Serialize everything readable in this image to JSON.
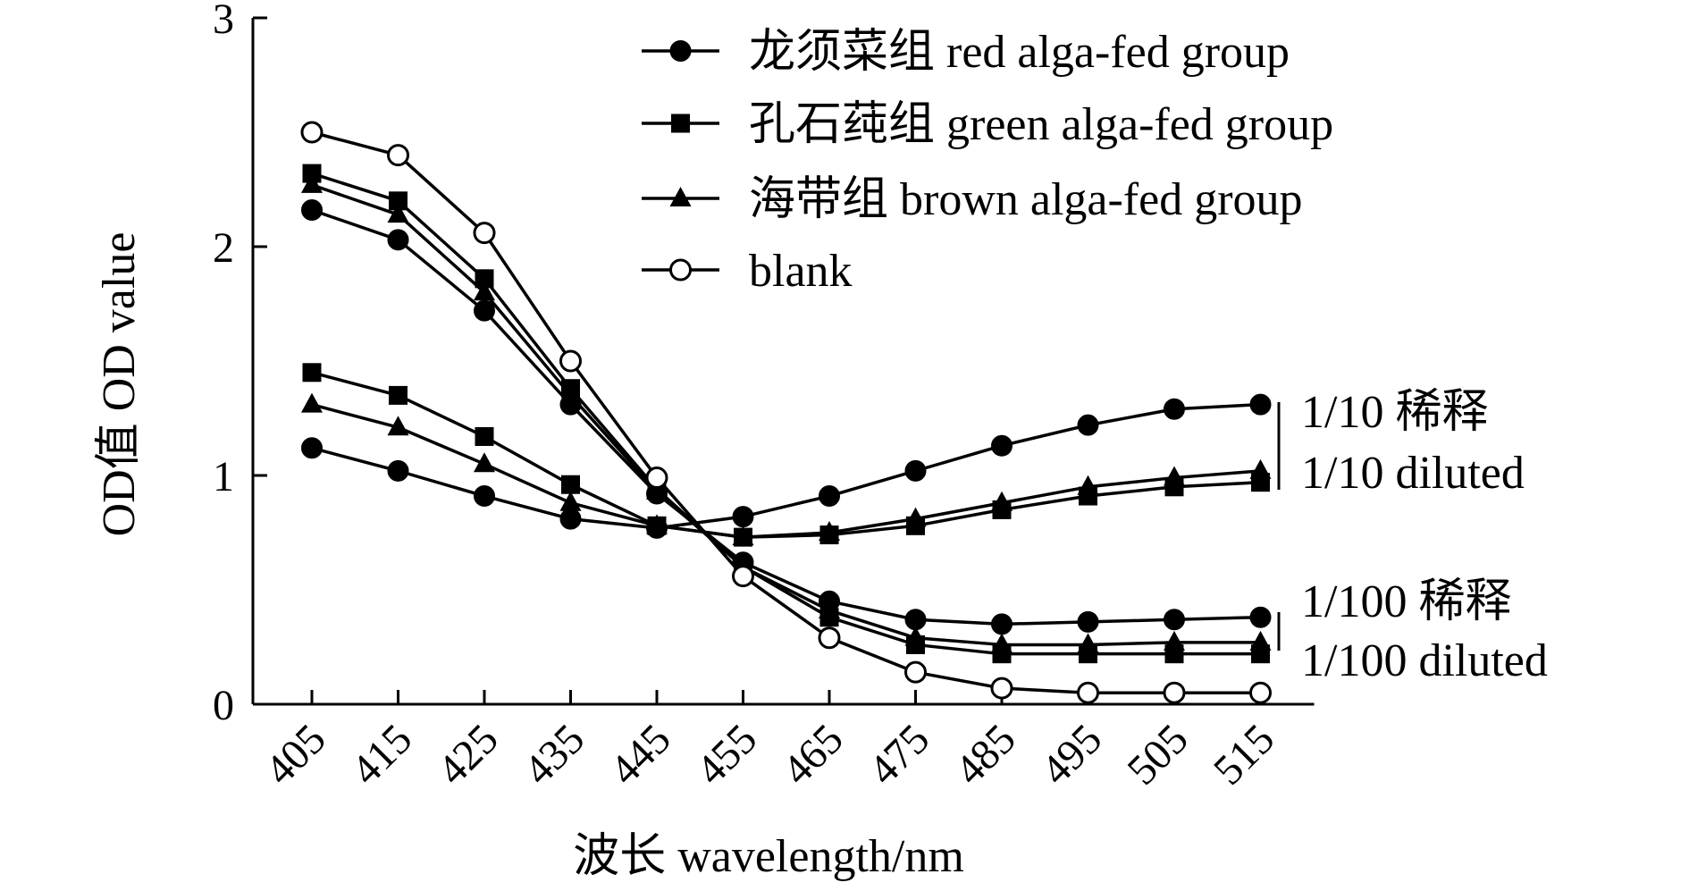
{
  "chart_data": {
    "type": "line",
    "title": "",
    "xlabel": "波长 wavelength/nm",
    "ylabel": "OD值 OD value",
    "categories": [
      "405",
      "415",
      "425",
      "435",
      "445",
      "455",
      "465",
      "475",
      "485",
      "495",
      "505",
      "515"
    ],
    "ylim": [
      0,
      3
    ],
    "yticks": [
      "0",
      "1",
      "2",
      "3"
    ],
    "grid": false,
    "legend_position": "top-right",
    "legend": [
      {
        "marker": "filled-circle",
        "label": "龙须菜组 red alga-fed group"
      },
      {
        "marker": "filled-square",
        "label": "孔石莼组 green alga-fed group"
      },
      {
        "marker": "filled-triangle",
        "label": "海带组 brown alga-fed group"
      },
      {
        "marker": "open-circle",
        "label": "blank"
      }
    ],
    "group_labels": [
      {
        "line1": "1/10 稀释",
        "line2": "1/10 diluted"
      },
      {
        "line1": "1/100 稀释",
        "line2": "1/100 diluted"
      }
    ],
    "series": [
      {
        "name": "龙须菜组 red alga-fed group",
        "dilution": "1/10",
        "marker": "filled-circle",
        "values": [
          1.12,
          1.02,
          0.91,
          0.81,
          0.77,
          0.82,
          0.91,
          1.02,
          1.13,
          1.22,
          1.29,
          1.31
        ]
      },
      {
        "name": "孔石莼组 green alga-fed group",
        "dilution": "1/10",
        "marker": "filled-square",
        "values": [
          1.45,
          1.35,
          1.17,
          0.96,
          0.78,
          0.73,
          0.74,
          0.78,
          0.85,
          0.91,
          0.95,
          0.97
        ]
      },
      {
        "name": "海带组 brown alga-fed group",
        "dilution": "1/10",
        "marker": "filled-triangle",
        "values": [
          1.31,
          1.21,
          1.05,
          0.88,
          0.78,
          0.73,
          0.75,
          0.81,
          0.88,
          0.95,
          0.99,
          1.02
        ]
      },
      {
        "name": "龙须菜组 red alga-fed group",
        "dilution": "1/100",
        "marker": "filled-circle",
        "values": [
          2.16,
          2.03,
          1.72,
          1.31,
          0.92,
          0.62,
          0.45,
          0.37,
          0.35,
          0.36,
          0.37,
          0.38
        ]
      },
      {
        "name": "孔石莼组 green alga-fed group",
        "dilution": "1/100",
        "marker": "filled-square",
        "values": [
          2.32,
          2.2,
          1.86,
          1.38,
          0.94,
          0.6,
          0.38,
          0.26,
          0.22,
          0.22,
          0.22,
          0.22
        ]
      },
      {
        "name": "海带组 brown alga-fed group",
        "dilution": "1/100",
        "marker": "filled-triangle",
        "values": [
          2.27,
          2.14,
          1.8,
          1.35,
          0.93,
          0.6,
          0.41,
          0.29,
          0.26,
          0.26,
          0.27,
          0.27
        ]
      },
      {
        "name": "blank",
        "dilution": "",
        "marker": "open-circle",
        "values": [
          2.5,
          2.4,
          2.06,
          1.5,
          0.99,
          0.56,
          0.29,
          0.14,
          0.07,
          0.05,
          0.05,
          0.05
        ]
      }
    ]
  }
}
